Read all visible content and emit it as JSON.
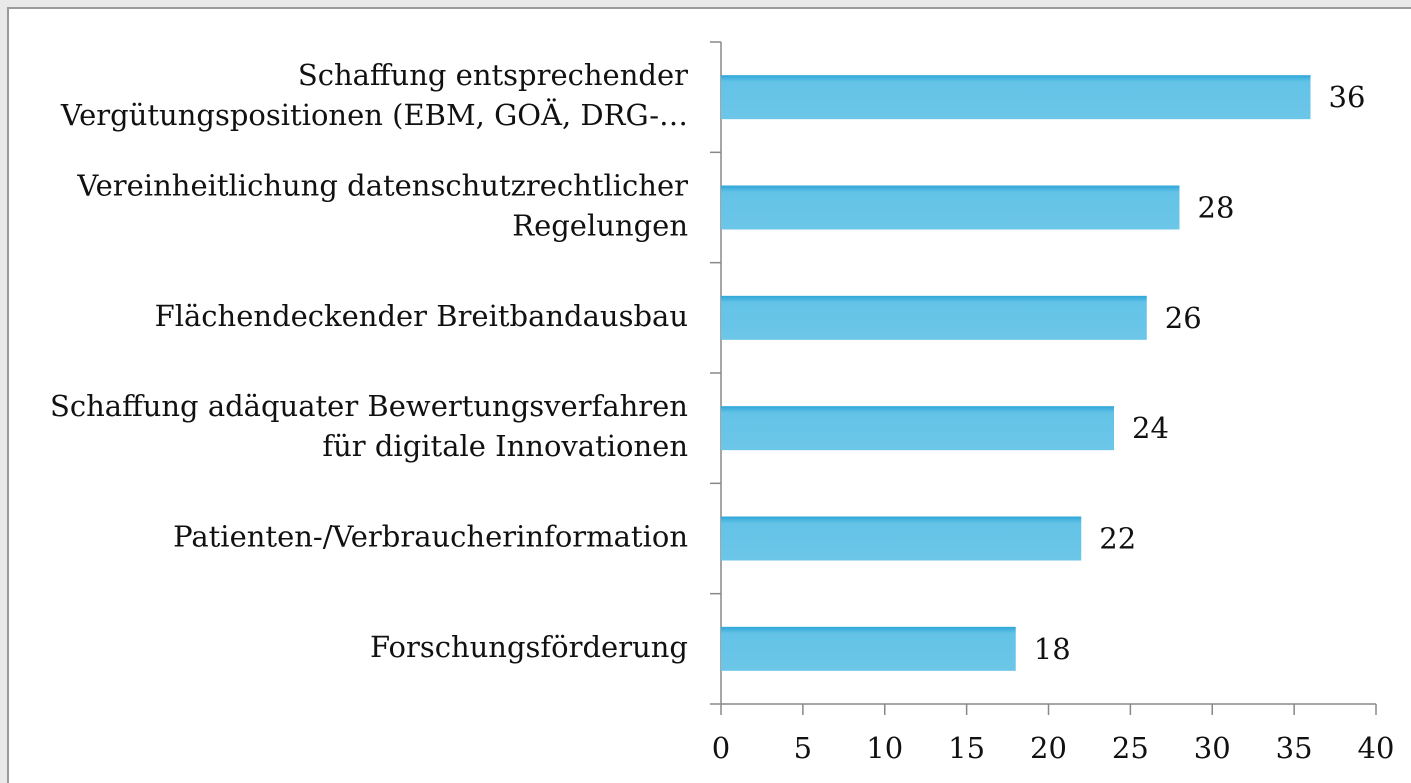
{
  "chart_data": {
    "type": "bar",
    "orientation": "horizontal",
    "categories": [
      [
        "Schaffung entsprechender",
        "Vergütungspositionen (EBM, GOÄ, DRG-…"
      ],
      [
        "Vereinheitlichung datenschutzrechtlicher",
        "Regelungen"
      ],
      [
        "Flächendeckender Breitbandausbau"
      ],
      [
        "Schaffung adäquater Bewertungsverfahren",
        "für digitale Innovationen"
      ],
      [
        "Patienten-/Verbraucherinformation"
      ],
      [
        "Forschungsförderung"
      ]
    ],
    "values": [
      36,
      28,
      26,
      24,
      22,
      18
    ],
    "color": "#63c3e7",
    "xlim": [
      0,
      40
    ],
    "xticks": [
      0,
      5,
      10,
      15,
      20,
      25,
      30,
      35,
      40
    ],
    "grid": false
  }
}
